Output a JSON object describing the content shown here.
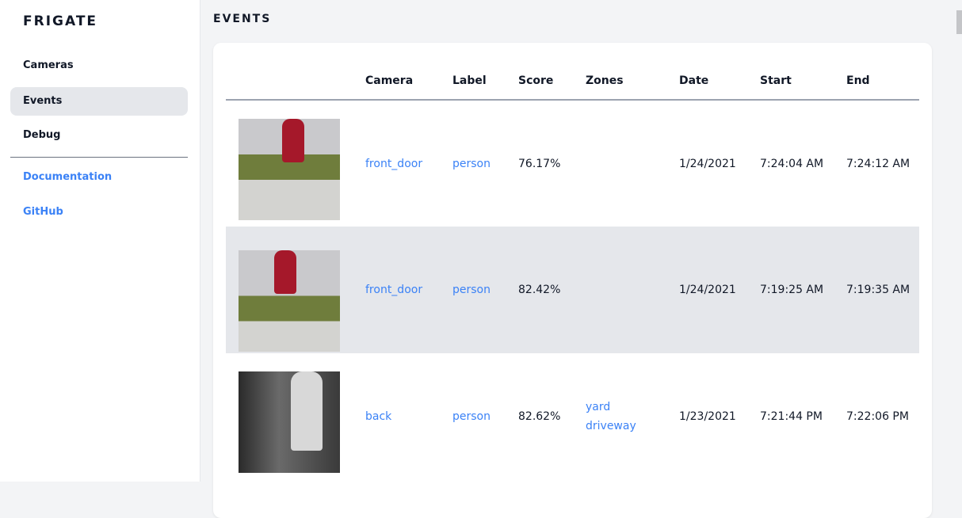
{
  "app": {
    "brand": "FRIGATE"
  },
  "sidebar": {
    "items": [
      {
        "label": "Cameras"
      },
      {
        "label": "Events",
        "active": true
      },
      {
        "label": "Debug"
      }
    ],
    "links": [
      {
        "label": "Documentation"
      },
      {
        "label": "GitHub"
      }
    ]
  },
  "page": {
    "title": "EVENTS"
  },
  "table": {
    "headers": [
      "",
      "Camera",
      "Label",
      "Score",
      "Zones",
      "Date",
      "Start",
      "End"
    ],
    "rows": [
      {
        "camera": "front_door",
        "label": "person",
        "score": "76.17%",
        "zones": [],
        "date": "1/24/2021",
        "start": "7:24:04 AM",
        "end": "7:24:12 AM"
      },
      {
        "camera": "front_door",
        "label": "person",
        "score": "82.42%",
        "zones": [],
        "date": "1/24/2021",
        "start": "7:19:25 AM",
        "end": "7:19:35 AM"
      },
      {
        "camera": "back",
        "label": "person",
        "score": "82.62%",
        "zones": [
          "yard",
          "driveway"
        ],
        "date": "1/23/2021",
        "start": "7:21:44 PM",
        "end": "7:22:06 PM"
      }
    ]
  },
  "colors": {
    "accent": "#3b82f6",
    "active_bg": "#e5e7eb"
  }
}
